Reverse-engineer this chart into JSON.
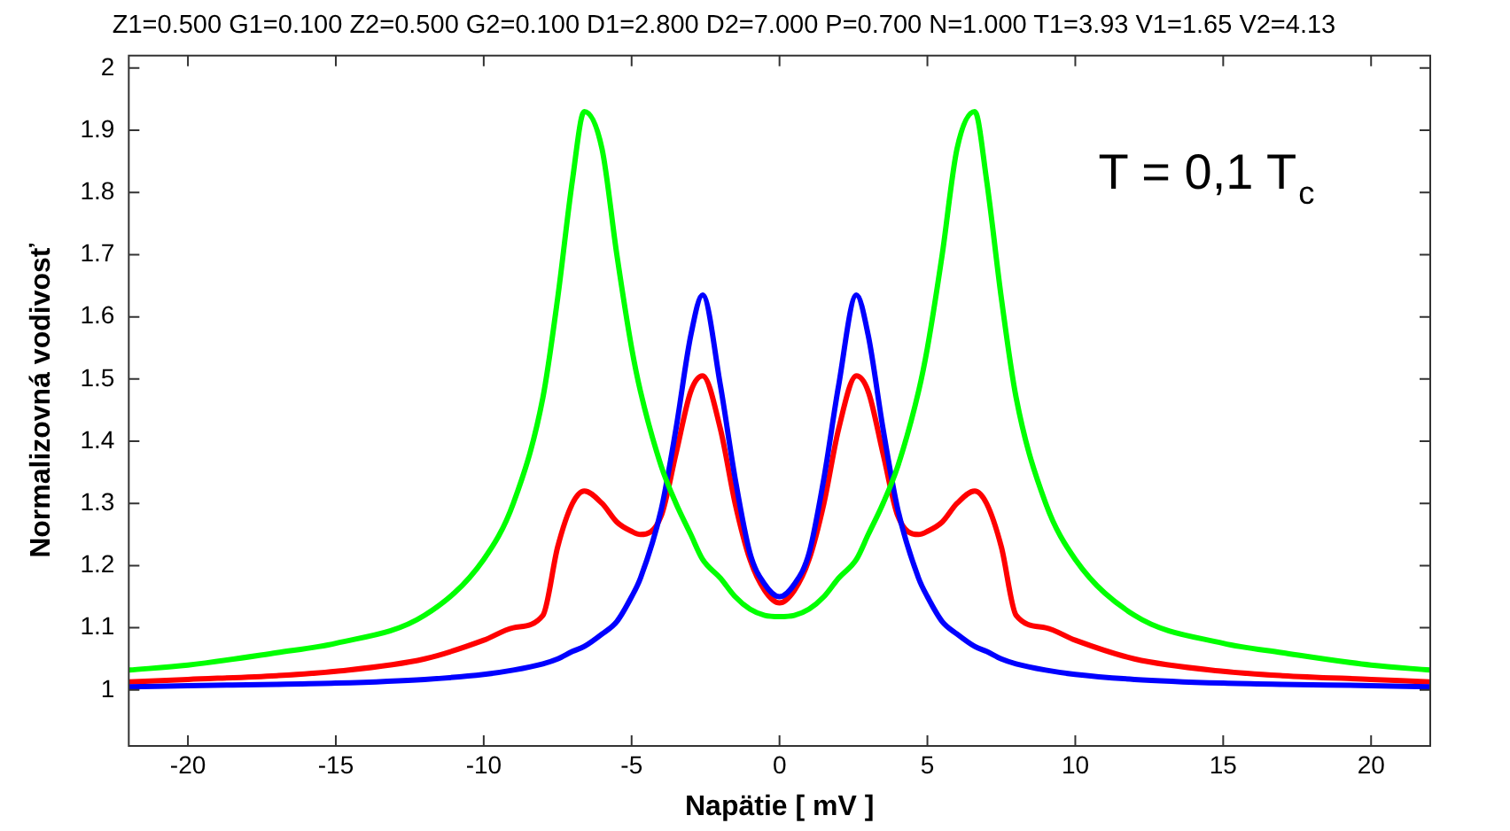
{
  "chart_data": {
    "type": "line",
    "title": "Z1=0.500 G1=0.100 Z2=0.500 G2=0.100 D1=2.800 D2=7.000 P=0.700 N=1.000 T1=3.93 V1=1.65 V2=4.13",
    "xlabel": "Napätie [ mV ]",
    "ylabel": "Normalizovná vodivosť",
    "annotations": [
      "T = 0,1 T$_{c}$"
    ],
    "x": [
      -22,
      -20,
      -17,
      -15,
      -12,
      -10,
      -9,
      -8,
      -7.5,
      -7,
      -6.6,
      -6,
      -5.5,
      -5,
      -4.7,
      -4,
      -3.5,
      -3,
      -2.6,
      -2,
      -1.5,
      -1,
      -0.5,
      0,
      0.5,
      1,
      1.5,
      2,
      2.6,
      3,
      3.5,
      4,
      4.7,
      5,
      5.5,
      6,
      6.6,
      7,
      7.5,
      8,
      9,
      10,
      12,
      15,
      17,
      20,
      22
    ],
    "series": [
      {
        "color": "#00ff00",
        "values": [
          1.032,
          1.04,
          1.06,
          1.075,
          1.12,
          1.21,
          1.3,
          1.47,
          1.63,
          1.82,
          1.93,
          1.87,
          1.7,
          1.55,
          1.48,
          1.36,
          1.3,
          1.25,
          1.21,
          1.18,
          1.15,
          1.13,
          1.12,
          1.118,
          1.12,
          1.13,
          1.15,
          1.18,
          1.21,
          1.25,
          1.3,
          1.36,
          1.48,
          1.55,
          1.7,
          1.87,
          1.93,
          1.82,
          1.63,
          1.47,
          1.3,
          1.21,
          1.12,
          1.075,
          1.06,
          1.04,
          1.032
        ]
      },
      {
        "color": "#0000ff",
        "values": [
          1.005,
          1.007,
          1.009,
          1.011,
          1.017,
          1.025,
          1.032,
          1.042,
          1.05,
          1.062,
          1.07,
          1.09,
          1.11,
          1.15,
          1.18,
          1.29,
          1.42,
          1.57,
          1.635,
          1.49,
          1.34,
          1.22,
          1.17,
          1.15,
          1.17,
          1.22,
          1.34,
          1.49,
          1.635,
          1.57,
          1.42,
          1.29,
          1.18,
          1.15,
          1.11,
          1.09,
          1.07,
          1.062,
          1.05,
          1.042,
          1.032,
          1.025,
          1.017,
          1.011,
          1.009,
          1.007,
          1.005
        ]
      },
      {
        "color": "#ff0000",
        "values": [
          1.013,
          1.017,
          1.023,
          1.03,
          1.05,
          1.08,
          1.1,
          1.12,
          1.23,
          1.3,
          1.32,
          1.3,
          1.27,
          1.255,
          1.25,
          1.28,
          1.38,
          1.48,
          1.505,
          1.42,
          1.3,
          1.21,
          1.16,
          1.14,
          1.16,
          1.21,
          1.3,
          1.42,
          1.505,
          1.48,
          1.38,
          1.28,
          1.25,
          1.255,
          1.27,
          1.3,
          1.32,
          1.3,
          1.23,
          1.12,
          1.1,
          1.08,
          1.05,
          1.03,
          1.023,
          1.017,
          1.013
        ]
      }
    ],
    "xlim": [
      -22,
      22
    ],
    "ylim": [
      0.91,
      2.02
    ],
    "xticks": [
      -20,
      -15,
      -10,
      -5,
      0,
      5,
      10,
      15,
      20
    ],
    "yticks": [
      1,
      1.1,
      1.2,
      1.3,
      1.4,
      1.5,
      1.6,
      1.7,
      1.8,
      1.9,
      2
    ],
    "marker": "none",
    "line_style": "solid",
    "grid": false,
    "legend": false
  }
}
